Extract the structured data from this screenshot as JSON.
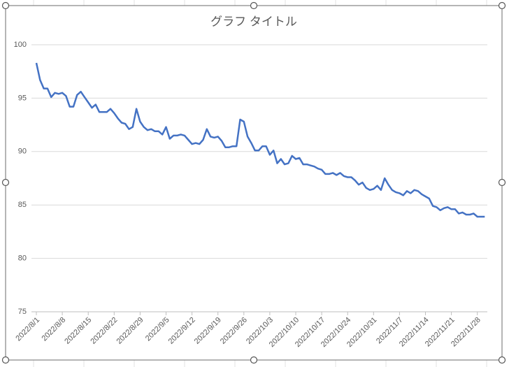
{
  "chart_data": {
    "type": "line",
    "title": "グラフ タイトル",
    "categories": [
      "2022/8/1",
      null,
      null,
      null,
      null,
      null,
      null,
      "2022/8/8",
      null,
      null,
      null,
      null,
      null,
      null,
      "2022/8/15",
      null,
      null,
      null,
      null,
      null,
      null,
      "2022/8/22",
      null,
      null,
      null,
      null,
      null,
      null,
      "2022/8/29",
      null,
      null,
      null,
      null,
      null,
      null,
      "2022/9/5",
      null,
      null,
      null,
      null,
      null,
      null,
      "2022/9/12",
      null,
      null,
      null,
      null,
      null,
      null,
      "2022/9/19",
      null,
      null,
      null,
      null,
      null,
      null,
      "2022/9/26",
      null,
      null,
      null,
      null,
      null,
      null,
      "2022/10/3",
      null,
      null,
      null,
      null,
      null,
      null,
      "2022/10/10",
      null,
      null,
      null,
      null,
      null,
      null,
      "2022/10/17",
      null,
      null,
      null,
      null,
      null,
      null,
      "2022/10/24",
      null,
      null,
      null,
      null,
      null,
      null,
      "2022/10/31",
      null,
      null,
      null,
      null,
      null,
      null,
      "2022/11/7",
      null,
      null,
      null,
      null,
      null,
      null,
      "2022/11/14",
      null,
      null,
      null,
      null,
      null,
      null,
      "2022/11/21",
      null,
      null,
      null,
      null,
      null,
      null,
      "2022/11/28",
      null,
      null
    ],
    "series": [
      {
        "color": "#4472c4",
        "values": [
          98.3,
          96.7,
          95.9,
          95.9,
          95.1,
          95.5,
          95.4,
          95.5,
          95.2,
          94.2,
          94.2,
          95.3,
          95.6,
          95.1,
          94.6,
          94.1,
          94.4,
          93.7,
          93.7,
          93.7,
          94.0,
          93.6,
          93.1,
          92.7,
          92.6,
          92.1,
          92.3,
          94.0,
          92.8,
          92.3,
          92.0,
          92.1,
          91.9,
          91.9,
          91.6,
          92.3,
          91.2,
          91.5,
          91.5,
          91.6,
          91.5,
          91.1,
          90.7,
          90.8,
          90.7,
          91.1,
          92.1,
          91.4,
          91.3,
          91.4,
          91.0,
          90.4,
          90.4,
          90.5,
          90.5,
          93.0,
          92.8,
          91.4,
          90.8,
          90.1,
          90.1,
          90.5,
          90.5,
          89.7,
          90.1,
          88.9,
          89.3,
          88.8,
          88.9,
          89.6,
          89.3,
          89.4,
          88.8,
          88.8,
          88.7,
          88.6,
          88.4,
          88.3,
          87.9,
          87.9,
          88.0,
          87.8,
          88.0,
          87.7,
          87.6,
          87.6,
          87.3,
          86.9,
          87.1,
          86.6,
          86.4,
          86.5,
          86.8,
          86.4,
          87.5,
          86.9,
          86.4,
          86.2,
          86.1,
          85.9,
          86.3,
          86.1,
          86.4,
          86.3,
          86.0,
          85.8,
          85.6,
          84.9,
          84.8,
          84.5,
          84.7,
          84.8,
          84.6,
          84.6,
          84.2,
          84.3,
          84.1,
          84.1,
          84.2,
          83.9,
          83.9,
          83.9
        ]
      }
    ],
    "ylim": [
      75,
      100
    ],
    "yticks": [
      75,
      80,
      85,
      90,
      95,
      100
    ],
    "grid": true
  }
}
